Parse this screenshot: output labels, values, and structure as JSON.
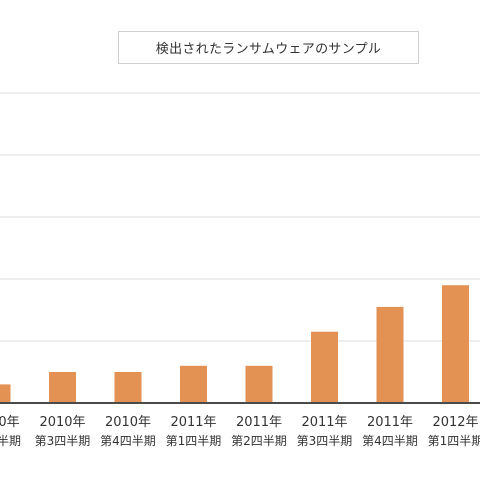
{
  "chart_data": {
    "type": "bar",
    "legend": "検出されたランサムウェアのサンプル",
    "legend_position": "top-center",
    "grid": true,
    "bar_color": "#e39253",
    "categories": [
      [
        "0年",
        "半期"
      ],
      [
        "2010年",
        "第3四半期"
      ],
      [
        "2010年",
        "第4四半期"
      ],
      [
        "2011年",
        "第1四半期"
      ],
      [
        "2011年",
        "第2四半期"
      ],
      [
        "2011年",
        "第3四半期"
      ],
      [
        "2011年",
        "第4四半期"
      ],
      [
        "2012年",
        "第1四半期"
      ]
    ],
    "values": [
      0.3,
      0.5,
      0.5,
      0.6,
      0.6,
      1.15,
      1.55,
      1.9
    ],
    "ylim": [
      0,
      5
    ],
    "y_gridlines": [
      1,
      2,
      3,
      4,
      5
    ]
  }
}
